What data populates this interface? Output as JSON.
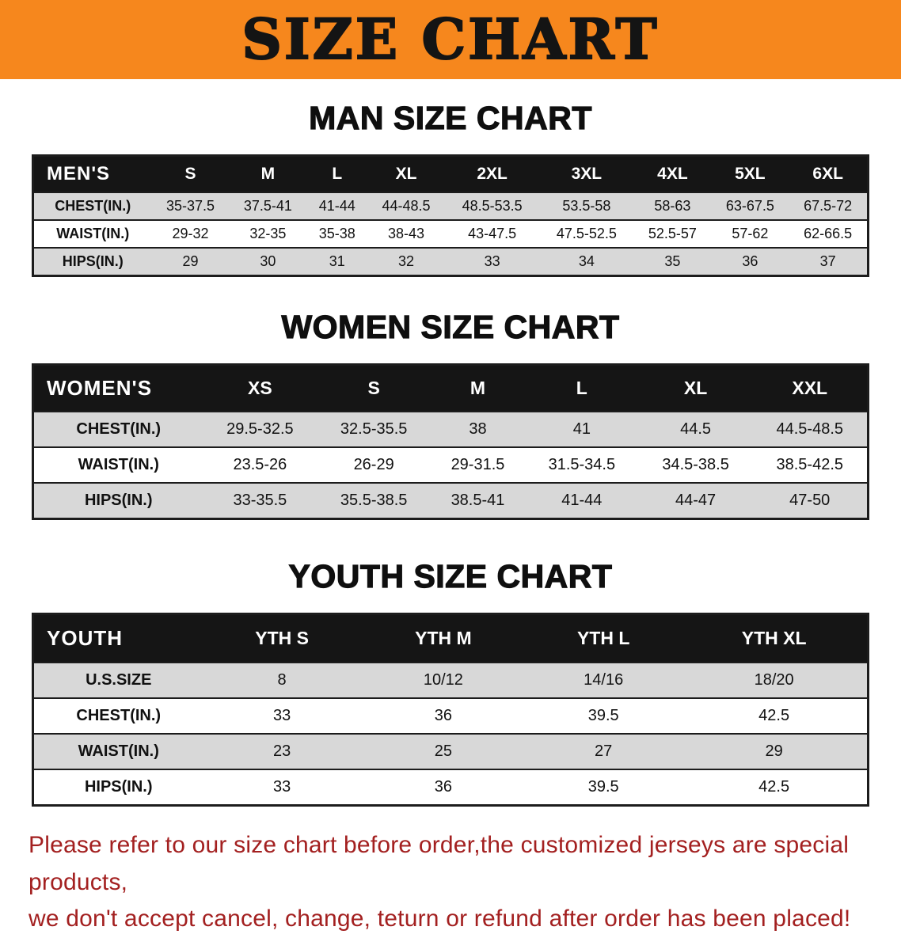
{
  "banner": {
    "title": "SIZE CHART"
  },
  "sections": {
    "men": {
      "heading": "MAN SIZE CHART",
      "table": {
        "header": [
          "MEN'S",
          "S",
          "M",
          "L",
          "XL",
          "2XL",
          "3XL",
          "4XL",
          "5XL",
          "6XL"
        ],
        "rows": [
          [
            "CHEST(IN.)",
            "35-37.5",
            "37.5-41",
            "41-44",
            "44-48.5",
            "48.5-53.5",
            "53.5-58",
            "58-63",
            "63-67.5",
            "67.5-72"
          ],
          [
            "WAIST(IN.)",
            "29-32",
            "32-35",
            "35-38",
            "38-43",
            "43-47.5",
            "47.5-52.5",
            "52.5-57",
            "57-62",
            "62-66.5"
          ],
          [
            "HIPS(IN.)",
            "29",
            "30",
            "31",
            "32",
            "33",
            "34",
            "35",
            "36",
            "37"
          ]
        ]
      }
    },
    "women": {
      "heading": "WOMEN SIZE CHART",
      "table": {
        "header": [
          "WOMEN'S",
          "XS",
          "S",
          "M",
          "L",
          "XL",
          "XXL"
        ],
        "rows": [
          [
            "CHEST(IN.)",
            "29.5-32.5",
            "32.5-35.5",
            "38",
            "41",
            "44.5",
            "44.5-48.5"
          ],
          [
            "WAIST(IN.)",
            "23.5-26",
            "26-29",
            "29-31.5",
            "31.5-34.5",
            "34.5-38.5",
            "38.5-42.5"
          ],
          [
            "HIPS(IN.)",
            "33-35.5",
            "35.5-38.5",
            "38.5-41",
            "41-44",
            "44-47",
            "47-50"
          ]
        ]
      }
    },
    "youth": {
      "heading": "YOUTH SIZE CHART",
      "table": {
        "header": [
          "YOUTH",
          "YTH S",
          "YTH M",
          "YTH L",
          "YTH XL"
        ],
        "rows": [
          [
            "U.S.SIZE",
            "8",
            "10/12",
            "14/16",
            "18/20"
          ],
          [
            "CHEST(IN.)",
            "33",
            "36",
            "39.5",
            "42.5"
          ],
          [
            "WAIST(IN.)",
            "23",
            "25",
            "27",
            "29"
          ],
          [
            "HIPS(IN.)",
            "33",
            "36",
            "39.5",
            "42.5"
          ]
        ]
      }
    }
  },
  "disclaimer": {
    "line1": "Please refer to our size chart before order,the customized jerseys are special products,",
    "line2": "we don't accept cancel, change, teturn or refund after order has been placed!"
  },
  "colors": {
    "banner_bg": "#F6871D",
    "title_color": "#141414",
    "table_header_bg": "#151515",
    "table_header_text": "#FFFFFF",
    "row_alt_bg": "#D8D8D8",
    "row_bg": "#FFFFFF",
    "border_color": "#1C1C1C",
    "disclaimer_color": "#A32020"
  }
}
